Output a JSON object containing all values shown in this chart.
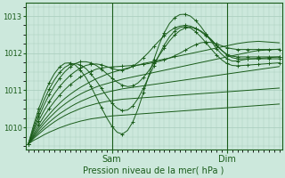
{
  "background_color": "#cce8dc",
  "grid_color": "#a8ccbc",
  "line_color": "#1a5c1a",
  "title": "Pression niveau de la mer( hPa )",
  "ylim": [
    1009.4,
    1013.35
  ],
  "yticks": [
    1010,
    1011,
    1012,
    1013
  ],
  "n_points": 49,
  "sam_tick": 16,
  "dim_tick": 38,
  "series": [
    {
      "y": [
        1009.55,
        1009.65,
        1009.72,
        1009.8,
        1009.87,
        1009.93,
        1009.99,
        1010.04,
        1010.09,
        1010.13,
        1010.17,
        1010.2,
        1010.23,
        1010.25,
        1010.27,
        1010.29,
        1010.31,
        1010.32,
        1010.33,
        1010.34,
        1010.35,
        1010.36,
        1010.37,
        1010.38,
        1010.39,
        1010.4,
        1010.41,
        1010.42,
        1010.43,
        1010.44,
        1010.45,
        1010.46,
        1010.47,
        1010.48,
        1010.49,
        1010.5,
        1010.51,
        1010.52,
        1010.53,
        1010.54,
        1010.55,
        1010.56,
        1010.57,
        1010.58,
        1010.59,
        1010.6,
        1010.61,
        1010.62,
        1010.63
      ],
      "marker": false
    },
    {
      "y": [
        1009.55,
        1009.7,
        1009.82,
        1009.94,
        1010.05,
        1010.15,
        1010.24,
        1010.32,
        1010.39,
        1010.45,
        1010.51,
        1010.56,
        1010.6,
        1010.64,
        1010.67,
        1010.7,
        1010.72,
        1010.74,
        1010.76,
        1010.77,
        1010.78,
        1010.79,
        1010.8,
        1010.81,
        1010.82,
        1010.83,
        1010.84,
        1010.85,
        1010.86,
        1010.87,
        1010.88,
        1010.89,
        1010.9,
        1010.91,
        1010.92,
        1010.93,
        1010.94,
        1010.95,
        1010.96,
        1010.97,
        1010.98,
        1010.99,
        1011.0,
        1011.01,
        1011.02,
        1011.03,
        1011.04,
        1011.05,
        1011.06
      ],
      "marker": false
    },
    {
      "y": [
        1009.55,
        1009.72,
        1009.87,
        1010.01,
        1010.14,
        1010.26,
        1010.37,
        1010.46,
        1010.55,
        1010.63,
        1010.7,
        1010.76,
        1010.82,
        1010.87,
        1010.91,
        1010.95,
        1010.98,
        1011.01,
        1011.04,
        1011.06,
        1011.08,
        1011.1,
        1011.12,
        1011.14,
        1011.16,
        1011.18,
        1011.2,
        1011.22,
        1011.24,
        1011.26,
        1011.28,
        1011.3,
        1011.32,
        1011.34,
        1011.36,
        1011.38,
        1011.4,
        1011.42,
        1011.44,
        1011.46,
        1011.48,
        1011.5,
        1011.52,
        1011.54,
        1011.56,
        1011.58,
        1011.6,
        1011.62,
        1011.64
      ],
      "marker": false
    },
    {
      "y": [
        1009.55,
        1009.75,
        1009.93,
        1010.1,
        1010.25,
        1010.39,
        1010.52,
        1010.63,
        1010.73,
        1010.82,
        1010.9,
        1010.97,
        1011.03,
        1011.09,
        1011.14,
        1011.18,
        1011.22,
        1011.26,
        1011.3,
        1011.33,
        1011.36,
        1011.39,
        1011.42,
        1011.45,
        1011.48,
        1011.51,
        1011.54,
        1011.57,
        1011.6,
        1011.63,
        1011.66,
        1011.69,
        1011.72,
        1011.75,
        1011.78,
        1011.81,
        1011.84,
        1011.87,
        1011.9,
        1011.93,
        1011.96,
        1011.99,
        1012.02,
        1012.05,
        1012.07,
        1012.08,
        1012.09,
        1012.1,
        1012.11
      ],
      "marker": false
    },
    {
      "y": [
        1009.55,
        1009.78,
        1009.99,
        1010.18,
        1010.35,
        1010.51,
        1010.65,
        1010.78,
        1010.89,
        1010.99,
        1011.08,
        1011.16,
        1011.24,
        1011.31,
        1011.37,
        1011.43,
        1011.48,
        1011.52,
        1011.56,
        1011.6,
        1011.64,
        1011.68,
        1011.72,
        1011.75,
        1011.78,
        1011.81,
        1011.84,
        1011.87,
        1011.9,
        1011.93,
        1011.96,
        1011.99,
        1012.02,
        1012.05,
        1012.08,
        1012.11,
        1012.14,
        1012.17,
        1012.2,
        1012.23,
        1012.26,
        1012.28,
        1012.3,
        1012.31,
        1012.32,
        1012.31,
        1012.3,
        1012.29,
        1012.28
      ],
      "marker": false
    },
    {
      "y": [
        1009.55,
        1009.82,
        1010.07,
        1010.3,
        1010.51,
        1010.7,
        1010.87,
        1011.02,
        1011.15,
        1011.26,
        1011.36,
        1011.44,
        1011.51,
        1011.57,
        1011.6,
        1011.62,
        1011.63,
        1011.64,
        1011.65,
        1011.66,
        1011.67,
        1011.68,
        1011.7,
        1011.72,
        1011.75,
        1011.78,
        1011.82,
        1011.87,
        1011.93,
        1012.0,
        1012.08,
        1012.16,
        1012.23,
        1012.28,
        1012.3,
        1012.29,
        1012.25,
        1012.2,
        1012.15,
        1012.12,
        1012.1,
        1012.1,
        1012.1,
        1012.1,
        1012.1,
        1012.1,
        1012.1,
        1012.1,
        1012.1
      ],
      "marker": true
    },
    {
      "y": [
        1009.55,
        1009.88,
        1010.18,
        1010.45,
        1010.69,
        1010.91,
        1011.1,
        1011.26,
        1011.4,
        1011.51,
        1011.6,
        1011.67,
        1011.7,
        1011.71,
        1011.69,
        1011.64,
        1011.59,
        1011.55,
        1011.55,
        1011.58,
        1011.65,
        1011.75,
        1011.88,
        1012.02,
        1012.18,
        1012.33,
        1012.47,
        1012.59,
        1012.68,
        1012.73,
        1012.75,
        1012.73,
        1012.67,
        1012.58,
        1012.47,
        1012.35,
        1012.2,
        1012.07,
        1011.97,
        1011.92,
        1011.9,
        1011.9,
        1011.9,
        1011.9,
        1011.9,
        1011.9,
        1011.9,
        1011.9,
        1011.9
      ],
      "marker": true
    },
    {
      "y": [
        1009.55,
        1009.93,
        1010.28,
        1010.6,
        1010.88,
        1011.12,
        1011.33,
        1011.5,
        1011.63,
        1011.72,
        1011.77,
        1011.77,
        1011.74,
        1011.67,
        1011.57,
        1011.45,
        1011.33,
        1011.22,
        1011.14,
        1011.1,
        1011.12,
        1011.2,
        1011.34,
        1011.52,
        1011.72,
        1011.93,
        1012.14,
        1012.33,
        1012.49,
        1012.61,
        1012.68,
        1012.7,
        1012.67,
        1012.6,
        1012.5,
        1012.37,
        1012.22,
        1012.08,
        1011.95,
        1011.88,
        1011.85,
        1011.85,
        1011.85,
        1011.85,
        1011.85,
        1011.85,
        1011.85,
        1011.85,
        1011.85
      ],
      "marker": true
    },
    {
      "y": [
        1009.55,
        1009.98,
        1010.38,
        1010.73,
        1011.03,
        1011.28,
        1011.48,
        1011.62,
        1011.7,
        1011.72,
        1011.68,
        1011.59,
        1011.44,
        1011.26,
        1011.05,
        1010.84,
        1010.65,
        1010.52,
        1010.45,
        1010.47,
        1010.58,
        1010.78,
        1011.05,
        1011.35,
        1011.65,
        1011.95,
        1012.22,
        1012.44,
        1012.6,
        1012.69,
        1012.72,
        1012.68,
        1012.58,
        1012.44,
        1012.28,
        1012.11,
        1011.95,
        1011.82,
        1011.72,
        1011.67,
        1011.66,
        1011.67,
        1011.68,
        1011.69,
        1011.7,
        1011.71,
        1011.72,
        1011.73,
        1011.74
      ],
      "marker": true
    },
    {
      "y": [
        1009.55,
        1010.05,
        1010.5,
        1010.88,
        1011.2,
        1011.45,
        1011.63,
        1011.73,
        1011.74,
        1011.68,
        1011.54,
        1011.35,
        1011.1,
        1010.82,
        1010.53,
        1010.26,
        1010.03,
        1009.87,
        1009.82,
        1009.92,
        1010.15,
        1010.5,
        1010.93,
        1011.38,
        1011.82,
        1012.22,
        1012.55,
        1012.8,
        1012.96,
        1013.04,
        1013.05,
        1013.0,
        1012.88,
        1012.72,
        1012.52,
        1012.32,
        1012.12,
        1011.97,
        1011.85,
        1011.79,
        1011.79,
        1011.82,
        1011.84,
        1011.85,
        1011.86,
        1011.87,
        1011.88,
        1011.89,
        1011.9
      ],
      "marker": true
    }
  ]
}
